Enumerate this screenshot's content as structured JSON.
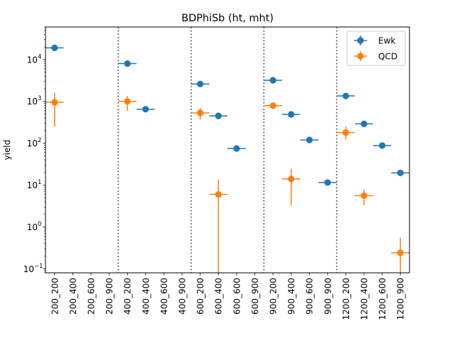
{
  "chart_data": {
    "type": "scatter",
    "title": "BDPhiSb (ht, mht)",
    "xlabel": "",
    "ylabel": "yield",
    "yscale": "log",
    "ylim": [
      0.08,
      60000
    ],
    "categories": [
      "200_200",
      "200_400",
      "200_600",
      "200_900",
      "400_200",
      "400_400",
      "400_600",
      "400_900",
      "600_200",
      "600_400",
      "600_600",
      "600_900",
      "900_200",
      "900_400",
      "900_600",
      "900_900",
      "1200_200",
      "1200_400",
      "1200_600",
      "1200_900"
    ],
    "y_ticks": [
      {
        "value": 0.1,
        "label": "10",
        "exp": "−1"
      },
      {
        "value": 1,
        "label": "10",
        "exp": "0"
      },
      {
        "value": 10,
        "label": "10",
        "exp": "1"
      },
      {
        "value": 100,
        "label": "10",
        "exp": "2"
      },
      {
        "value": 1000,
        "label": "10",
        "exp": "3"
      },
      {
        "value": 10000,
        "label": "10",
        "exp": "4"
      }
    ],
    "separators_after_index": [
      3,
      7,
      11,
      15
    ],
    "grid": false,
    "legend_position": "top-right",
    "series": [
      {
        "name": "Ewk",
        "color": "#1f77b4",
        "values": [
          19000,
          null,
          null,
          null,
          8000,
          650,
          null,
          null,
          2600,
          450,
          75,
          null,
          3200,
          490,
          120,
          11.5,
          1350,
          290,
          88,
          19.5
        ],
        "errors_low": [
          0,
          null,
          null,
          null,
          0,
          0,
          null,
          null,
          0,
          0,
          0,
          null,
          0,
          0,
          0,
          0,
          0,
          0,
          0,
          0
        ],
        "errors_high": [
          0,
          null,
          null,
          null,
          0,
          0,
          null,
          null,
          0,
          0,
          0,
          null,
          0,
          0,
          0,
          0,
          0,
          0,
          0,
          0
        ]
      },
      {
        "name": "QCD",
        "color": "#ff7f0e",
        "values": [
          950,
          null,
          null,
          null,
          1000,
          null,
          null,
          null,
          530,
          6,
          null,
          null,
          790,
          14,
          null,
          null,
          180,
          5.6,
          null,
          0.24
        ],
        "errors_low": [
          700,
          null,
          null,
          null,
          400,
          null,
          null,
          null,
          160,
          5.92,
          null,
          null,
          90,
          10.8,
          null,
          null,
          60,
          2.3,
          null,
          0.16
        ],
        "errors_high": [
          650,
          null,
          null,
          null,
          350,
          null,
          null,
          null,
          170,
          7.5,
          null,
          null,
          90,
          10.5,
          null,
          null,
          70,
          2.2,
          null,
          0.31
        ]
      }
    ]
  }
}
